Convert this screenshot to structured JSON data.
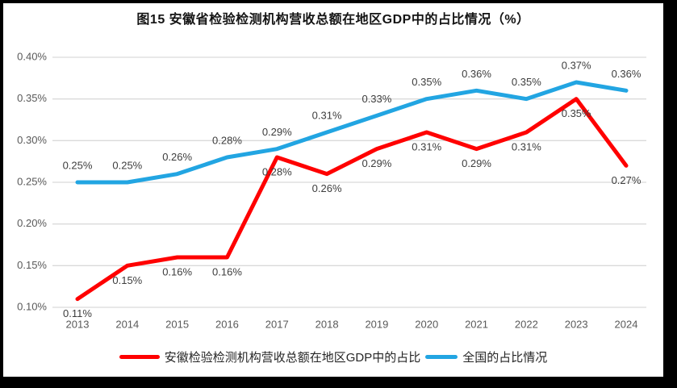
{
  "chart_data": {
    "type": "line",
    "title": "图15 安徽省检验检测机构营收总额在地区GDP中的占比情况（%）",
    "x": [
      "2013",
      "2014",
      "2015",
      "2016",
      "2017",
      "2018",
      "2019",
      "2020",
      "2021",
      "2022",
      "2023",
      "2024"
    ],
    "xlabel": "",
    "ylabel": "",
    "ylim": [
      0.1,
      0.4
    ],
    "ytick_values": [
      0.1,
      0.15,
      0.2,
      0.25,
      0.3,
      0.35,
      0.4
    ],
    "ytick_labels": [
      "0.10%",
      "0.15%",
      "0.20%",
      "0.25%",
      "0.30%",
      "0.35%",
      "0.40%"
    ],
    "grid": true,
    "legend_position": "bottom",
    "series": [
      {
        "name": "安徽检验检测机构营收总额在地区GDP中的占比",
        "color": "#FF0000",
        "values": [
          0.11,
          0.15,
          0.16,
          0.16,
          0.28,
          0.26,
          0.29,
          0.31,
          0.29,
          0.31,
          0.35,
          0.27
        ],
        "labels": [
          "0.11%",
          "0.15%",
          "0.16%",
          "0.16%",
          "0.28%",
          "0.26%",
          "0.29%",
          "0.31%",
          "0.29%",
          "0.31%",
          "0.35%",
          "0.27%"
        ],
        "label_position": "below"
      },
      {
        "name": "全国的占比情况",
        "color": "#22A5E2",
        "values": [
          0.25,
          0.25,
          0.26,
          0.28,
          0.29,
          0.31,
          0.33,
          0.35,
          0.36,
          0.35,
          0.37,
          0.36
        ],
        "labels": [
          "0.25%",
          "0.25%",
          "0.26%",
          "0.28%",
          "0.29%",
          "0.31%",
          "0.33%",
          "0.35%",
          "0.36%",
          "0.35%",
          "0.37%",
          "0.36%"
        ],
        "label_position": "above"
      }
    ]
  },
  "colors": {
    "anhui_line": "#FF0000",
    "national_line": "#22A5E2",
    "gridline": "#DADADA",
    "axis_text": "#595959",
    "data_label_text": "#3D3D3D",
    "border": "#000000",
    "background": "#FFFFFF"
  }
}
